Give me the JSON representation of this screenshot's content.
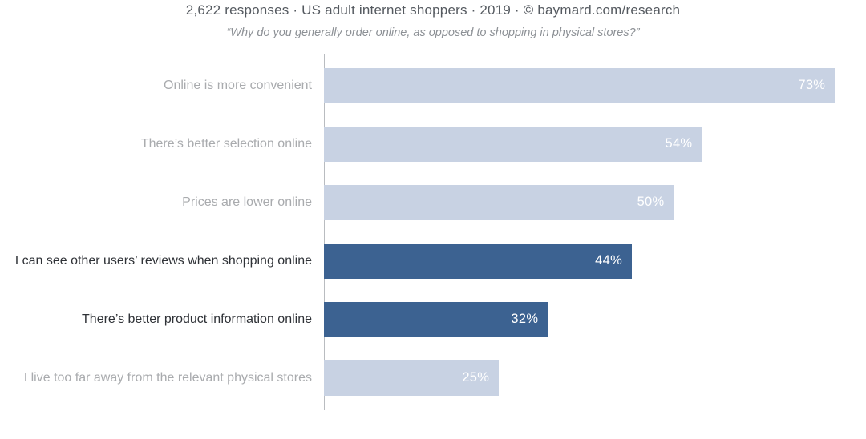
{
  "header": {
    "title": "2,622 responses  ·  US adult internet shoppers ·  2019  ·  ©  baymard.com/research",
    "subtitle": "“Why do you generally order online, as opposed to shopping in physical stores?”"
  },
  "chart_data": {
    "type": "bar",
    "orientation": "horizontal",
    "title": "2,622 responses · US adult internet shoppers · 2019 · © baymard.com/research",
    "subtitle": "“Why do you generally order online, as opposed to shopping in physical stores?”",
    "categories": [
      "Online is more convenient",
      "There’s better selection online",
      "Prices are lower online",
      "I can see other users’ reviews when shopping online",
      "There’s better product information online",
      "I live too far away from the relevant physical stores"
    ],
    "values": [
      73,
      54,
      50,
      44,
      32,
      25
    ],
    "value_labels": [
      "73%",
      "54%",
      "50%",
      "44%",
      "32%",
      "25%"
    ],
    "highlighted": [
      false,
      false,
      false,
      true,
      true,
      false
    ],
    "xlim": [
      0,
      100
    ],
    "grid": false,
    "legend": "none",
    "colors": {
      "bar_default": "#c8d2e3",
      "bar_highlight": "#3c6291",
      "label_default": "#a9abae",
      "label_highlight": "#2f3237",
      "value_text": "#ffffff",
      "axis_line": "#b9bcc0"
    }
  }
}
